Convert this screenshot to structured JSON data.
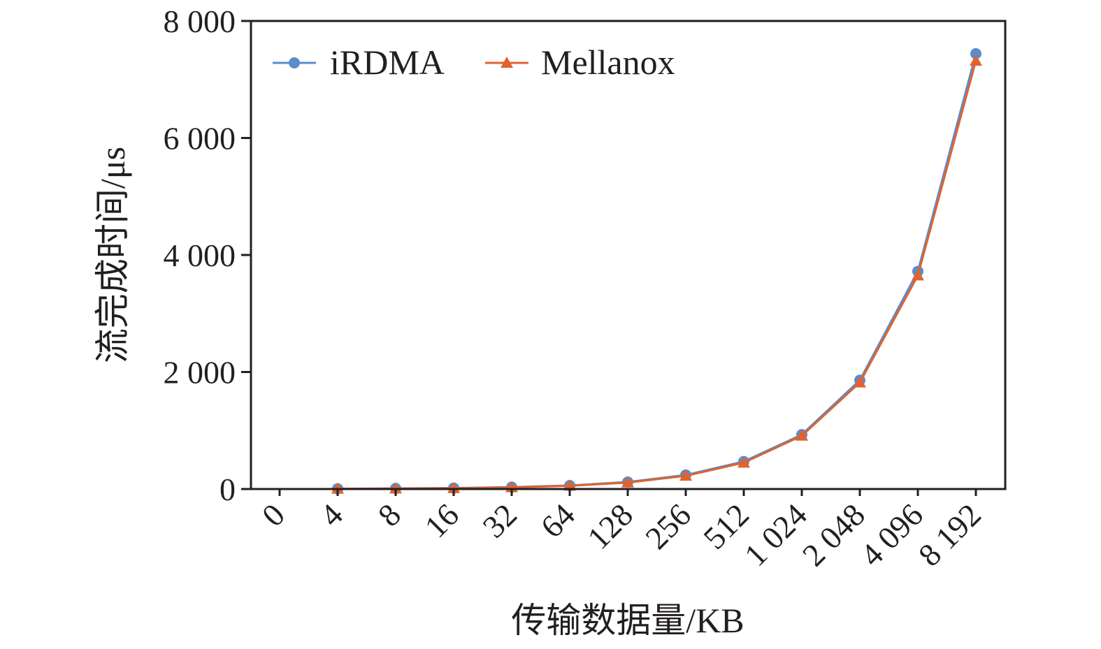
{
  "chart_data": {
    "type": "line",
    "title": "",
    "xlabel": "传输数据量/KB",
    "ylabel": "流完成时间/μs",
    "categories": [
      "0",
      "4",
      "8",
      "16",
      "32",
      "64",
      "128",
      "256",
      "512",
      "1 024",
      "2 048",
      "4 096",
      "8 192"
    ],
    "yticks": [
      "0",
      "2 000",
      "4 000",
      "6 000",
      "8 000"
    ],
    "ylim": [
      0,
      8000
    ],
    "grid": false,
    "legend_position": "top-left",
    "series": [
      {
        "name": "iRDMA",
        "color": "#5b8ccc",
        "marker": "circle",
        "values": [
          null,
          5,
          10,
          17,
          33,
          60,
          120,
          240,
          470,
          930,
          1860,
          3720,
          7440
        ]
      },
      {
        "name": "Mellanox",
        "color": "#e0632d",
        "marker": "triangle",
        "values": [
          null,
          4,
          8,
          14,
          28,
          55,
          110,
          225,
          450,
          910,
          1820,
          3650,
          7320
        ]
      }
    ]
  }
}
